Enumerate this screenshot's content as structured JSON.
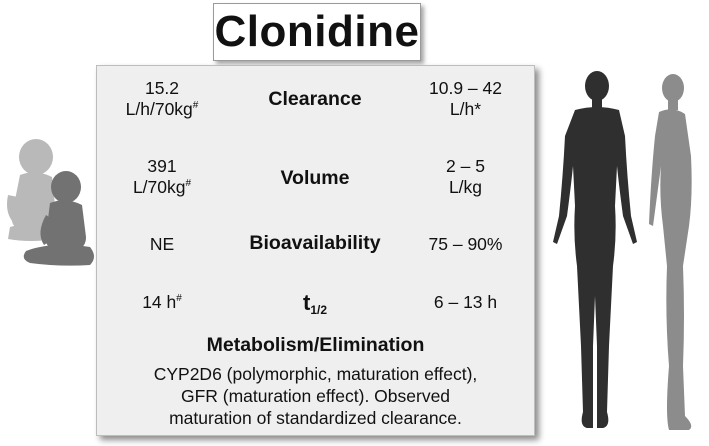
{
  "title": "Clonidine",
  "rows": [
    {
      "name": "Clearance",
      "pediatric_line1": "15.2",
      "pediatric_line2": "L/h/70kg",
      "pediatric_mark": "#",
      "adult_line1": "10.9 – 42",
      "adult_line2": "L/h*"
    },
    {
      "name": "Volume",
      "pediatric_line1": "391",
      "pediatric_line2": "L/70kg",
      "pediatric_mark": "#",
      "adult_line1": "2 – 5",
      "adult_line2": "L/kg"
    },
    {
      "name": "Bioavailability",
      "pediatric_line1": "NE",
      "adult_line1": "75 – 90%"
    },
    {
      "name": "t",
      "name_sub": "1/2",
      "pediatric_line1": "14 h",
      "pediatric_mark": "#",
      "adult_line1": "6 – 13 h"
    }
  ],
  "metabolism": {
    "title": "Metabolism/Elimination",
    "lines": [
      "CYP2D6 (polymorphic, maturation effect),",
      "GFR (maturation effect). Observed",
      "maturation of standardized clearance."
    ]
  },
  "icons": {
    "children": "children-silhouette-icon",
    "adults": "adult-silhouettes-icon"
  },
  "colors": {
    "panel": "#efefef",
    "child_back": "#b7b7b7",
    "child_front": "#6f6f6f",
    "adult_front": "#2e2e2e",
    "adult_side": "#8a8a8a"
  }
}
